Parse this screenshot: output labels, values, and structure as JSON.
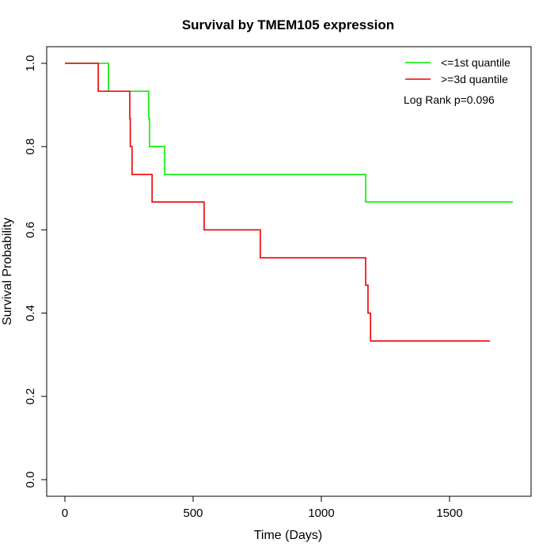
{
  "chart_data": {
    "type": "line",
    "title": "Survival by TMEM105 expression",
    "xlabel": "Time (Days)",
    "ylabel": "Survival Probability",
    "xlim": [
      0,
      1750
    ],
    "ylim": [
      0,
      1
    ],
    "xticks": [
      0,
      500,
      1000,
      1500
    ],
    "yticks": [
      0.0,
      0.2,
      0.4,
      0.6,
      0.8,
      1.0
    ],
    "xtick_labels": [
      "0",
      "500",
      "1000",
      "1500"
    ],
    "ytick_labels": [
      "0.0",
      "0.2",
      "0.4",
      "0.6",
      "0.8",
      "1.0"
    ],
    "grid": false,
    "legend_position": "top-right",
    "annotation": "Log Rank p=0.096",
    "series": [
      {
        "name": "<=1st quantile",
        "color": "#00ee00",
        "steps": [
          [
            0,
            1.0
          ],
          [
            170,
            0.933
          ],
          [
            327,
            0.867
          ],
          [
            330,
            0.8
          ],
          [
            389,
            0.733
          ],
          [
            1173,
            0.667
          ]
        ],
        "end": 1747
      },
      {
        "name": ">=3d quantile",
        "color": "#ee0000",
        "steps": [
          [
            0,
            1.0
          ],
          [
            130,
            0.933
          ],
          [
            253,
            0.867
          ],
          [
            255,
            0.8
          ],
          [
            262,
            0.733
          ],
          [
            340,
            0.667
          ],
          [
            543,
            0.6
          ],
          [
            762,
            0.533
          ],
          [
            1173,
            0.467
          ],
          [
            1182,
            0.4
          ],
          [
            1192,
            0.333
          ]
        ],
        "end": 1657
      }
    ]
  }
}
